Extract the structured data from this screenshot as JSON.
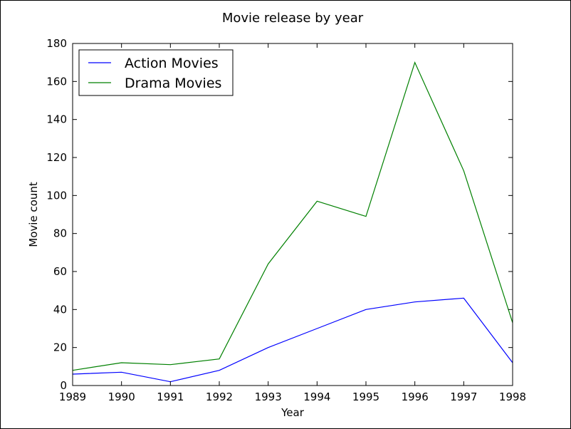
{
  "chart_data": {
    "type": "line",
    "title": "Movie release by year",
    "xlabel": "Year",
    "ylabel": "Movie count",
    "x": [
      1989,
      1990,
      1991,
      1992,
      1993,
      1994,
      1995,
      1996,
      1997,
      1998
    ],
    "xlim": [
      1989,
      1998
    ],
    "ylim": [
      0,
      180
    ],
    "xticks": [
      1989,
      1990,
      1991,
      1992,
      1993,
      1994,
      1995,
      1996,
      1997,
      1998
    ],
    "yticks": [
      0,
      20,
      40,
      60,
      80,
      100,
      120,
      140,
      160,
      180
    ],
    "grid": false,
    "legend_position": "top-left",
    "series": [
      {
        "name": "Action Movies",
        "color": "#0000ff",
        "values": [
          6,
          7,
          2,
          8,
          20,
          30,
          40,
          44,
          46,
          12
        ]
      },
      {
        "name": "Drama Movies",
        "color": "#008000",
        "values": [
          8,
          12,
          11,
          14,
          64,
          97,
          89,
          170,
          113,
          33
        ]
      }
    ]
  }
}
